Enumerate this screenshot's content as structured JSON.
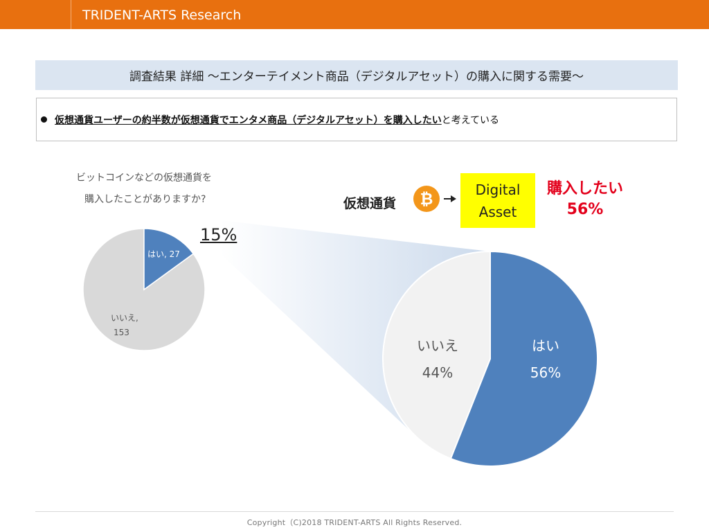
{
  "header": {
    "title": "TRIDENT-ARTS Research"
  },
  "title_bar": {
    "text": "調査結果 詳細 ～エンターテイメント商品（デジタルアセット）の購入に関する需要～"
  },
  "bullet": {
    "strong": "仮想通貨ユーザーの約半数が仮想通貨でエンタメ商品（デジタルアセット）を購入したい",
    "rest": "と考えている"
  },
  "question": {
    "line1": "ビットコインなどの仮想通貨を",
    "line2": "購入したことがありますか?"
  },
  "highlight_pct": "15%",
  "flow": {
    "crypto_label": "仮想通貨",
    "btc_icon": "bitcoin-icon",
    "btc_glyph": "₿",
    "arrow_icon": "arrow-right-icon",
    "asset_line1": "Digital",
    "asset_line2": "Asset",
    "buy_line1": "購入したい",
    "buy_line2": "56%"
  },
  "colors": {
    "header": "#e8700f",
    "title_bar": "#dbe5f1",
    "yes": "#4f81bd",
    "no_small": "#d9d9d9",
    "no_large": "#f2f2f2",
    "highlight_box": "#ffff00",
    "buy_text": "#e3001b",
    "bitcoin": "#f3961a"
  },
  "chart_data": [
    {
      "type": "pie",
      "title": "ビットコインなどの仮想通貨を購入したことがありますか?",
      "slices": [
        {
          "label": "はい",
          "value": 27,
          "display": "はい, 27"
        },
        {
          "label": "いいえ",
          "value": 153,
          "display_line1": "いいえ,",
          "display_line2": "153"
        }
      ]
    },
    {
      "type": "pie",
      "slices": [
        {
          "label": "はい",
          "value": 56,
          "display_line1": "はい",
          "display_line2": "56%"
        },
        {
          "label": "いいえ",
          "value": 44,
          "display_line1": "いいえ",
          "display_line2": "44%"
        }
      ]
    }
  ],
  "footer": {
    "text": "Copyright（C)2018 TRIDENT-ARTS All Rights Reserved."
  }
}
